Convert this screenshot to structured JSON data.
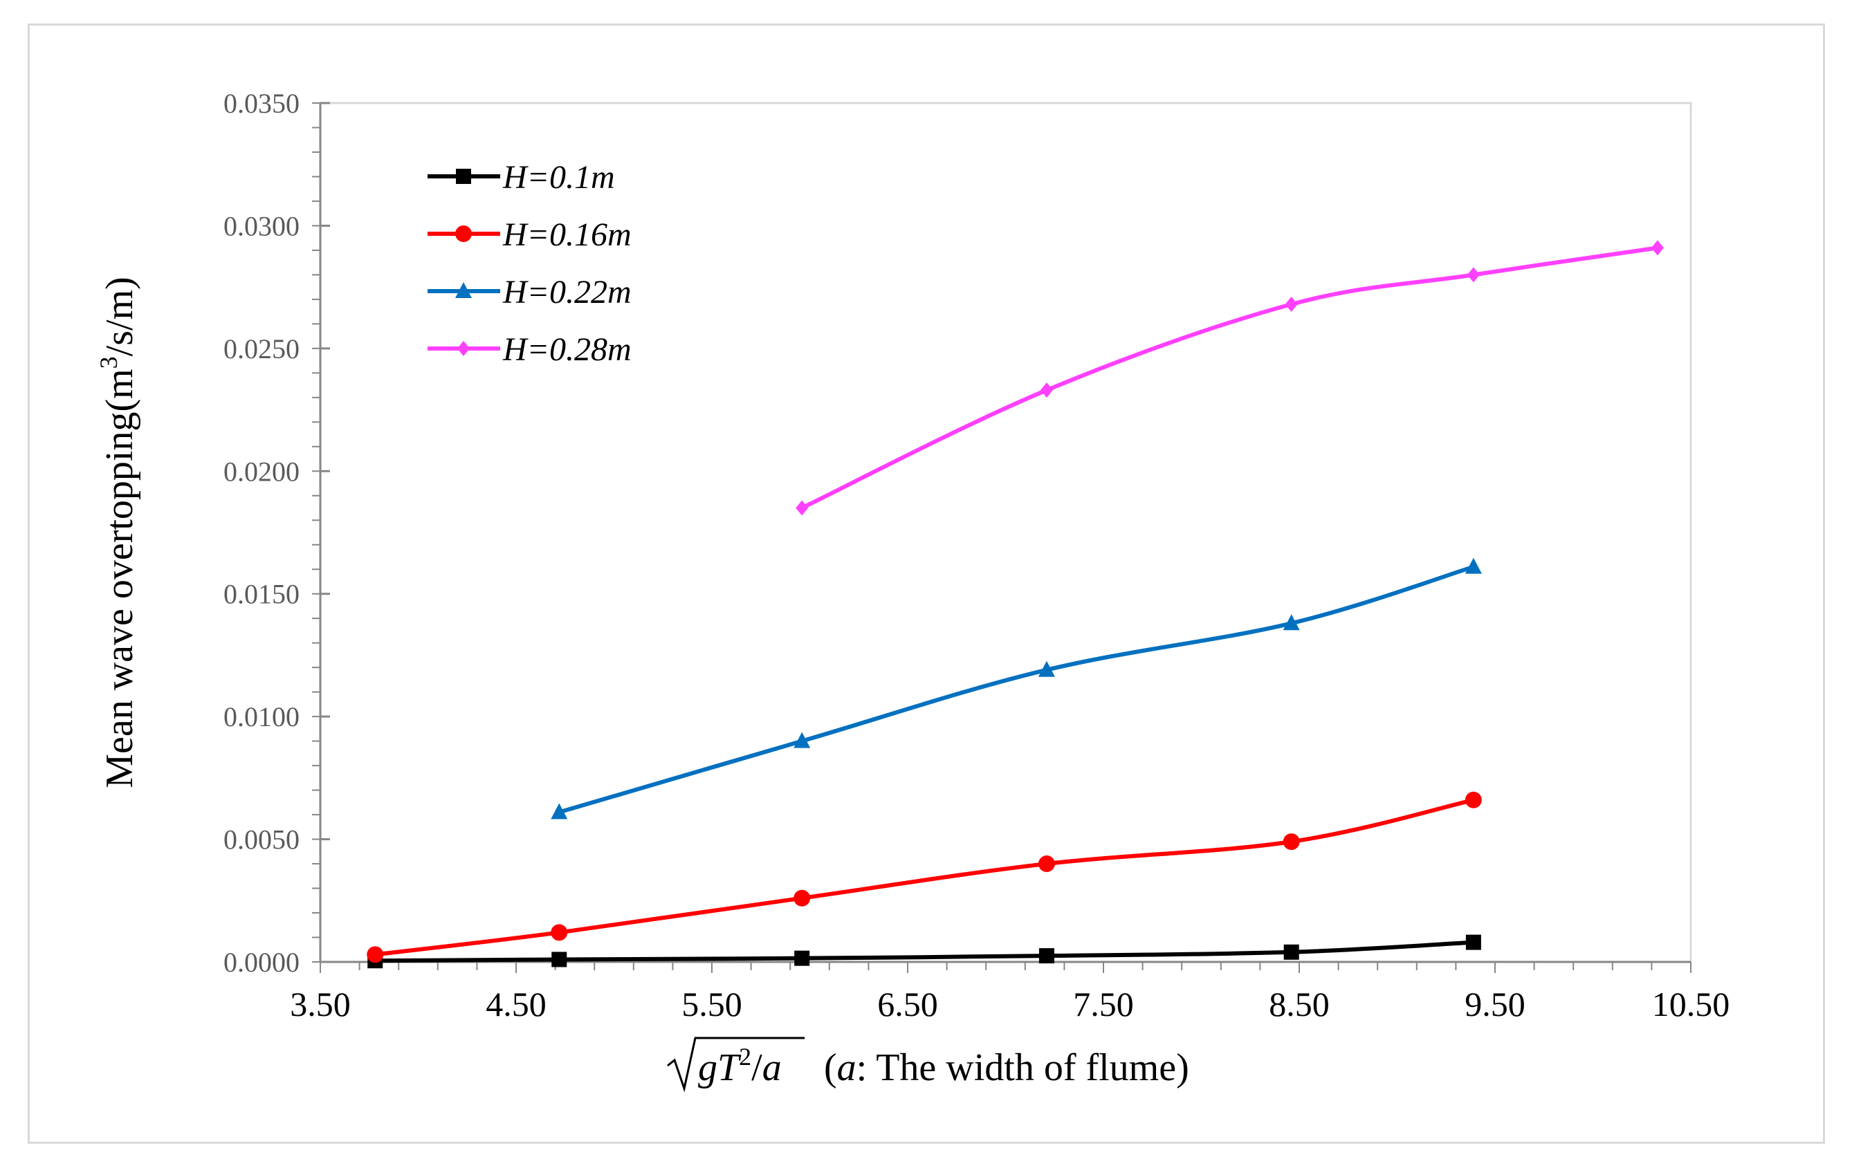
{
  "chart_data": {
    "type": "line",
    "title": "",
    "xlabel": {
      "formula_base": "gT",
      "formula_exp": "2",
      "formula_slash": "/",
      "formula_var": "a",
      "note_open": "(",
      "note_var": "a",
      "note_text": ": The width of flume)"
    },
    "ylabel": {
      "prefix": "Mean wave overtopping(m",
      "sup": "3",
      "suffix": "/s/m)"
    },
    "xlim": [
      3.5,
      10.5
    ],
    "ylim": [
      0,
      0.035
    ],
    "x_ticks": [
      "3.50",
      "4.50",
      "5.50",
      "6.50",
      "7.50",
      "8.50",
      "9.50",
      "10.50"
    ],
    "y_ticks": [
      "0.0000",
      "0.0050",
      "0.0100",
      "0.0150",
      "0.0200",
      "0.0250",
      "0.0300",
      "0.0350"
    ],
    "legend_position": "top-left",
    "series": [
      {
        "name": "H=0.1m",
        "color": "#000000",
        "marker": "square",
        "x": [
          3.78,
          4.72,
          5.96,
          7.21,
          8.46,
          9.39
        ],
        "y": [
          5e-05,
          0.0001,
          0.00015,
          0.00025,
          0.0004,
          0.0008
        ]
      },
      {
        "name": "H=0.16m",
        "color": "#ff0000",
        "marker": "circle",
        "x": [
          3.78,
          4.72,
          5.96,
          7.21,
          8.46,
          9.39
        ],
        "y": [
          0.0003,
          0.0012,
          0.0026,
          0.004,
          0.0049,
          0.0066
        ]
      },
      {
        "name": "H=0.22m",
        "color": "#0070c0",
        "marker": "triangle",
        "x": [
          4.72,
          5.96,
          7.21,
          8.46,
          9.39
        ],
        "y": [
          0.0061,
          0.009,
          0.0119,
          0.0138,
          0.0161
        ]
      },
      {
        "name": "H=0.28m",
        "color": "#ff40ff",
        "marker": "diamond",
        "x": [
          5.96,
          7.21,
          8.46,
          9.39,
          10.33
        ],
        "y": [
          0.0185,
          0.0233,
          0.0268,
          0.028,
          0.0291
        ]
      }
    ]
  }
}
